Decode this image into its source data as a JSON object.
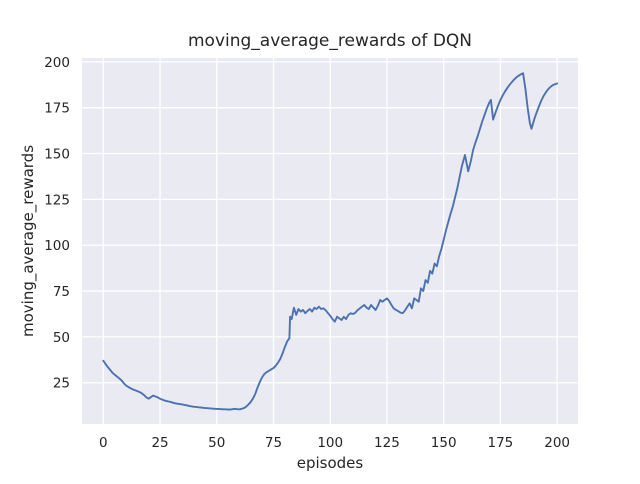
{
  "chart_data": {
    "type": "line",
    "title": "moving_average_rewards of DQN",
    "xlabel": "episodes",
    "ylabel": "moving_average_rewards",
    "x_ticks": [
      0,
      25,
      50,
      75,
      100,
      125,
      150,
      175,
      200
    ],
    "y_ticks": [
      25,
      50,
      75,
      100,
      125,
      150,
      175,
      200
    ],
    "xlim": [
      -9.4,
      209.2
    ],
    "ylim": [
      2.5,
      202.1
    ],
    "grid": true,
    "legend_position": "none",
    "colors": {
      "figure_bg": "#ffffff",
      "plot_bg": "#eaeaf2",
      "grid": "#ffffff",
      "line": "#4c72b0",
      "text": "#262626"
    },
    "series": [
      {
        "name": "DQN",
        "points": [
          [
            0,
            37
          ],
          [
            1,
            35.2
          ],
          [
            2,
            33.5
          ],
          [
            3,
            32
          ],
          [
            4,
            30.5
          ],
          [
            5,
            29.4
          ],
          [
            6,
            28.4
          ],
          [
            7,
            27.4
          ],
          [
            8,
            26.3
          ],
          [
            9,
            24.8
          ],
          [
            10,
            23.5
          ],
          [
            11,
            22.7
          ],
          [
            12,
            22
          ],
          [
            13,
            21.4
          ],
          [
            14,
            20.9
          ],
          [
            15,
            20.4
          ],
          [
            16,
            19.9
          ],
          [
            17,
            19.2
          ],
          [
            18,
            18.2
          ],
          [
            19,
            17
          ],
          [
            20,
            16.3
          ],
          [
            21,
            17.2
          ],
          [
            22,
            18
          ],
          [
            23,
            17.5
          ],
          [
            24,
            17
          ],
          [
            25,
            16.3
          ],
          [
            26,
            15.8
          ],
          [
            27,
            15.3
          ],
          [
            28,
            15
          ],
          [
            29,
            14.7
          ],
          [
            30,
            14.4
          ],
          [
            31,
            14
          ],
          [
            32,
            13.7
          ],
          [
            33,
            13.5
          ],
          [
            34,
            13.3
          ],
          [
            35,
            13.1
          ],
          [
            36,
            12.8
          ],
          [
            37,
            12.6
          ],
          [
            38,
            12.3
          ],
          [
            39,
            12.1
          ],
          [
            40,
            11.9
          ],
          [
            41,
            11.8
          ],
          [
            42,
            11.6
          ],
          [
            43,
            11.5
          ],
          [
            44,
            11.3
          ],
          [
            45,
            11.2
          ],
          [
            46,
            11.1
          ],
          [
            47,
            11
          ],
          [
            48,
            10.9
          ],
          [
            49,
            10.8
          ],
          [
            50,
            10.7
          ],
          [
            51,
            10.7
          ],
          [
            52,
            10.6
          ],
          [
            53,
            10.5
          ],
          [
            54,
            10.5
          ],
          [
            55,
            10.4
          ],
          [
            56,
            10.4
          ],
          [
            57,
            10.6
          ],
          [
            58,
            10.8
          ],
          [
            59,
            10.6
          ],
          [
            60,
            10.5
          ],
          [
            61,
            10.8
          ],
          [
            62,
            11.2
          ],
          [
            63,
            12
          ],
          [
            64,
            13.2
          ],
          [
            65,
            14.6
          ],
          [
            66,
            16.5
          ],
          [
            67,
            19
          ],
          [
            68,
            22.5
          ],
          [
            69,
            25.5
          ],
          [
            70,
            28
          ],
          [
            71,
            29.8
          ],
          [
            72,
            30.8
          ],
          [
            73,
            31.5
          ],
          [
            74,
            32.3
          ],
          [
            75,
            33
          ],
          [
            76,
            34.3
          ],
          [
            77,
            36
          ],
          [
            78,
            38
          ],
          [
            79,
            41
          ],
          [
            80,
            44.5
          ],
          [
            81,
            47.5
          ],
          [
            82,
            49.2
          ],
          [
            82.3,
            61
          ],
          [
            83,
            59.7
          ],
          [
            84,
            65.9
          ],
          [
            85,
            62
          ],
          [
            86,
            65.2
          ],
          [
            87,
            63.8
          ],
          [
            88,
            64.7
          ],
          [
            89,
            62.9
          ],
          [
            90,
            64.2
          ],
          [
            91,
            65.2
          ],
          [
            92,
            63.8
          ],
          [
            93,
            65.9
          ],
          [
            94,
            65.2
          ],
          [
            95,
            66.5
          ],
          [
            96,
            65.2
          ],
          [
            97,
            65.6
          ],
          [
            98,
            64.5
          ],
          [
            99,
            63
          ],
          [
            100,
            61.5
          ],
          [
            101,
            59.7
          ],
          [
            102,
            58.3
          ],
          [
            103,
            61
          ],
          [
            104,
            60.1
          ],
          [
            105,
            59.2
          ],
          [
            106,
            61
          ],
          [
            107,
            59.7
          ],
          [
            108,
            62
          ],
          [
            109,
            62.9
          ],
          [
            110,
            62.5
          ],
          [
            111,
            63.1
          ],
          [
            112,
            64.5
          ],
          [
            113,
            65.5
          ],
          [
            114,
            66.5
          ],
          [
            115,
            67.4
          ],
          [
            116,
            66
          ],
          [
            117,
            65.2
          ],
          [
            118,
            67.4
          ],
          [
            119,
            66
          ],
          [
            120,
            64.7
          ],
          [
            121,
            67
          ],
          [
            122,
            70.1
          ],
          [
            123,
            69.2
          ],
          [
            124,
            70.1
          ],
          [
            125,
            71
          ],
          [
            126,
            69.5
          ],
          [
            127,
            67.4
          ],
          [
            128,
            65.5
          ],
          [
            129,
            64.7
          ],
          [
            130,
            64
          ],
          [
            131,
            63.2
          ],
          [
            132,
            63
          ],
          [
            133,
            64.5
          ],
          [
            134,
            66.5
          ],
          [
            135,
            68.3
          ],
          [
            136,
            65.6
          ],
          [
            137,
            71
          ],
          [
            138,
            70.1
          ],
          [
            139,
            69.2
          ],
          [
            140,
            76.5
          ],
          [
            141,
            75
          ],
          [
            142,
            81
          ],
          [
            143,
            79.5
          ],
          [
            144,
            86
          ],
          [
            145,
            84.5
          ],
          [
            146,
            90
          ],
          [
            147,
            88.5
          ],
          [
            148,
            94
          ],
          [
            149,
            98
          ],
          [
            150,
            103
          ],
          [
            151,
            108
          ],
          [
            152,
            112.5
          ],
          [
            153,
            117
          ],
          [
            154,
            121
          ],
          [
            155,
            126
          ],
          [
            156,
            131
          ],
          [
            157,
            137
          ],
          [
            158,
            143
          ],
          [
            159,
            147.5
          ],
          [
            159.4,
            149.2
          ],
          [
            160.8,
            140.3
          ],
          [
            162,
            146
          ],
          [
            163,
            152
          ],
          [
            164,
            156
          ],
          [
            165,
            159.5
          ],
          [
            166,
            163.5
          ],
          [
            167,
            167.5
          ],
          [
            168,
            171
          ],
          [
            169,
            174.5
          ],
          [
            170,
            177.5
          ],
          [
            170.8,
            179.3
          ],
          [
            171.8,
            168.5
          ],
          [
            173,
            172.9
          ],
          [
            174,
            176.2
          ],
          [
            175,
            179.2
          ],
          [
            176,
            181.6
          ],
          [
            177,
            183.8
          ],
          [
            178,
            185.7
          ],
          [
            179,
            187.4
          ],
          [
            180,
            188.9
          ],
          [
            181,
            190.3
          ],
          [
            182,
            191.5
          ],
          [
            183,
            192.4
          ],
          [
            184,
            193.2
          ],
          [
            185,
            193.8
          ],
          [
            186,
            185.5
          ],
          [
            187,
            175
          ],
          [
            188,
            166.5
          ],
          [
            188.7,
            163.5
          ],
          [
            190,
            169
          ],
          [
            191,
            172.5
          ],
          [
            192,
            175.8
          ],
          [
            193,
            178.8
          ],
          [
            194,
            181.3
          ],
          [
            195,
            183.3
          ],
          [
            196,
            185
          ],
          [
            197,
            186.3
          ],
          [
            198,
            187.2
          ],
          [
            199,
            187.8
          ],
          [
            200,
            188.2
          ]
        ]
      }
    ]
  }
}
